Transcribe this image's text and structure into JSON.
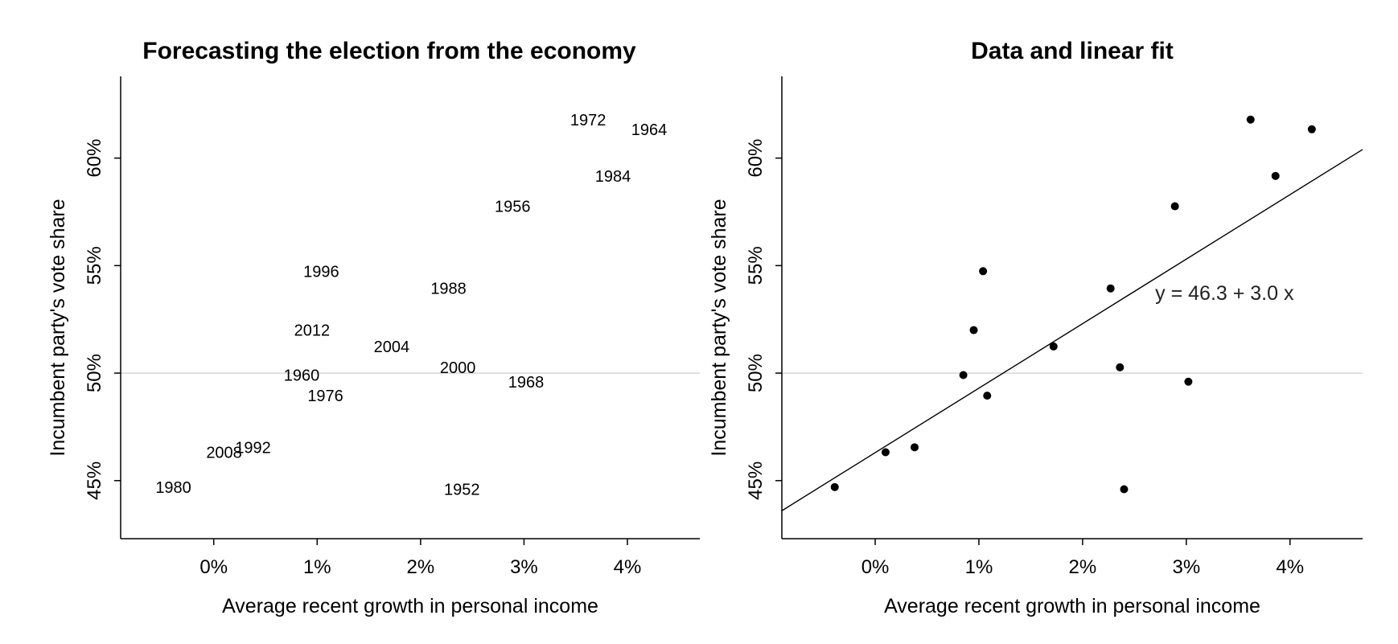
{
  "chart_data": [
    {
      "type": "scatter",
      "marker": "text-label",
      "title": "Forecasting the election from the economy",
      "xlabel": "Average recent growth in personal income",
      "ylabel": "Incumbent party's vote share",
      "xlim": [
        -0.9,
        4.7
      ],
      "ylim": [
        42.3,
        63.8
      ],
      "xticks": [
        {
          "value": 0,
          "label": "0%"
        },
        {
          "value": 1,
          "label": "1%"
        },
        {
          "value": 2,
          "label": "2%"
        },
        {
          "value": 3,
          "label": "3%"
        },
        {
          "value": 4,
          "label": "4%"
        }
      ],
      "yticks": [
        {
          "value": 45,
          "label": "45%"
        },
        {
          "value": 50,
          "label": "50%"
        },
        {
          "value": 55,
          "label": "55%"
        },
        {
          "value": 60,
          "label": "60%"
        }
      ],
      "reference_line_y": 50,
      "points": [
        {
          "label": "1952",
          "x": 2.4,
          "y": 44.6
        },
        {
          "label": "1956",
          "x": 2.89,
          "y": 57.76
        },
        {
          "label": "1960",
          "x": 0.85,
          "y": 49.91
        },
        {
          "label": "1964",
          "x": 4.21,
          "y": 61.34
        },
        {
          "label": "1968",
          "x": 3.02,
          "y": 49.6
        },
        {
          "label": "1972",
          "x": 3.62,
          "y": 61.79
        },
        {
          "label": "1976",
          "x": 1.08,
          "y": 48.95
        },
        {
          "label": "1980",
          "x": -0.39,
          "y": 44.7
        },
        {
          "label": "1984",
          "x": 3.86,
          "y": 59.17
        },
        {
          "label": "1988",
          "x": 2.27,
          "y": 53.94
        },
        {
          "label": "1992",
          "x": 0.38,
          "y": 46.55
        },
        {
          "label": "1996",
          "x": 1.04,
          "y": 54.74
        },
        {
          "label": "2000",
          "x": 2.36,
          "y": 50.27
        },
        {
          "label": "2004",
          "x": 1.72,
          "y": 51.24
        },
        {
          "label": "2008",
          "x": 0.1,
          "y": 46.32
        },
        {
          "label": "2012",
          "x": 0.95,
          "y": 52.0
        }
      ]
    },
    {
      "type": "scatter",
      "marker": "dot",
      "title": "Data and linear fit",
      "xlabel": "Average recent growth in personal income",
      "ylabel": "Incumbent party's vote share",
      "xlim": [
        -0.9,
        4.7
      ],
      "ylim": [
        42.3,
        63.8
      ],
      "xticks": [
        {
          "value": 0,
          "label": "0%"
        },
        {
          "value": 1,
          "label": "1%"
        },
        {
          "value": 2,
          "label": "2%"
        },
        {
          "value": 3,
          "label": "3%"
        },
        {
          "value": 4,
          "label": "4%"
        }
      ],
      "yticks": [
        {
          "value": 45,
          "label": "45%"
        },
        {
          "value": 50,
          "label": "50%"
        },
        {
          "value": 55,
          "label": "55%"
        },
        {
          "value": 60,
          "label": "60%"
        }
      ],
      "reference_line_y": 50,
      "fit": {
        "intercept": 46.3,
        "slope": 3.0,
        "label": "y = 46.3 + 3.0 x",
        "label_x": 2.7,
        "label_y": 53.4
      },
      "points": [
        {
          "x": 2.4,
          "y": 44.6
        },
        {
          "x": 2.89,
          "y": 57.76
        },
        {
          "x": 0.85,
          "y": 49.91
        },
        {
          "x": 4.21,
          "y": 61.34
        },
        {
          "x": 3.02,
          "y": 49.6
        },
        {
          "x": 3.62,
          "y": 61.79
        },
        {
          "x": 1.08,
          "y": 48.95
        },
        {
          "x": -0.39,
          "y": 44.7
        },
        {
          "x": 3.86,
          "y": 59.17
        },
        {
          "x": 2.27,
          "y": 53.94
        },
        {
          "x": 0.38,
          "y": 46.55
        },
        {
          "x": 1.04,
          "y": 54.74
        },
        {
          "x": 2.36,
          "y": 50.27
        },
        {
          "x": 1.72,
          "y": 51.24
        },
        {
          "x": 0.1,
          "y": 46.32
        },
        {
          "x": 0.95,
          "y": 52.0
        }
      ]
    }
  ]
}
